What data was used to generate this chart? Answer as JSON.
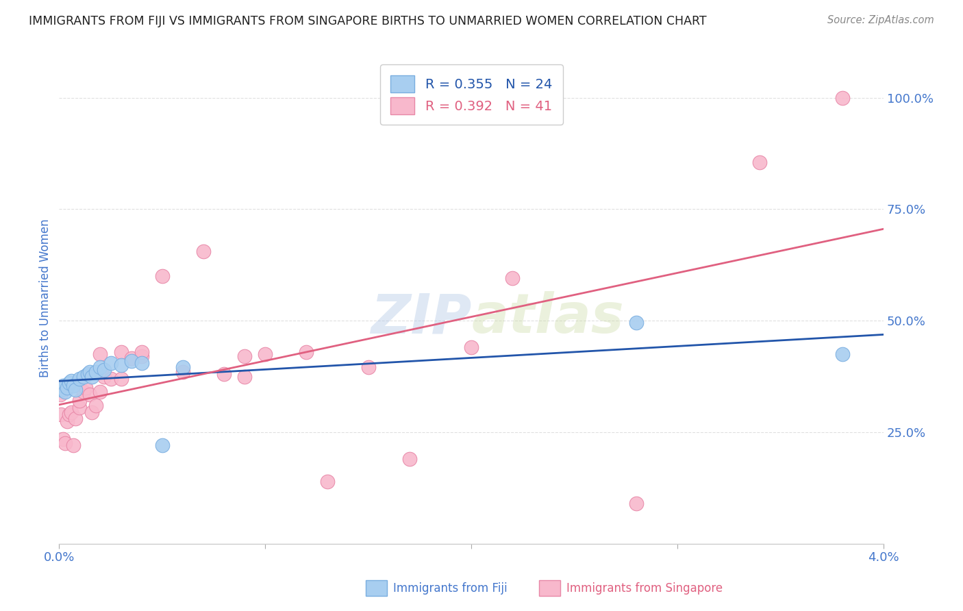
{
  "title": "IMMIGRANTS FROM FIJI VS IMMIGRANTS FROM SINGAPORE BIRTHS TO UNMARRIED WOMEN CORRELATION CHART",
  "source": "Source: ZipAtlas.com",
  "ylabel": "Births to Unmarried Women",
  "xmin": 0.0,
  "xmax": 0.04,
  "ymin": 0.0,
  "ymax": 1.1,
  "yticks": [
    0.25,
    0.5,
    0.75,
    1.0
  ],
  "ytick_labels": [
    "25.0%",
    "50.0%",
    "75.0%",
    "100.0%"
  ],
  "fiji_color": "#a8cef0",
  "fiji_edge_color": "#7aaee0",
  "singapore_color": "#f8b8cc",
  "singapore_edge_color": "#e888a8",
  "fiji_line_color": "#2255aa",
  "singapore_line_color": "#e06080",
  "legend_R_fiji": "R = 0.355",
  "legend_N_fiji": "N = 24",
  "legend_R_singapore": "R = 0.392",
  "legend_N_singapore": "N = 41",
  "watermark_zip": "ZIP",
  "watermark_atlas": "atlas",
  "fiji_scatter_x": [
    0.0001,
    0.0002,
    0.0003,
    0.0004,
    0.0005,
    0.0006,
    0.0007,
    0.0008,
    0.001,
    0.0012,
    0.0014,
    0.0015,
    0.0016,
    0.0018,
    0.002,
    0.0022,
    0.0025,
    0.003,
    0.0035,
    0.004,
    0.005,
    0.006,
    0.028,
    0.038
  ],
  "fiji_scatter_y": [
    0.345,
    0.355,
    0.34,
    0.35,
    0.36,
    0.365,
    0.355,
    0.345,
    0.37,
    0.375,
    0.38,
    0.385,
    0.375,
    0.385,
    0.395,
    0.39,
    0.405,
    0.4,
    0.41,
    0.405,
    0.22,
    0.395,
    0.495,
    0.425
  ],
  "singapore_scatter_x": [
    5e-05,
    0.0001,
    0.0002,
    0.0003,
    0.0004,
    0.0005,
    0.0006,
    0.0007,
    0.0008,
    0.001,
    0.001,
    0.0012,
    0.0013,
    0.0015,
    0.0016,
    0.0018,
    0.002,
    0.002,
    0.0022,
    0.0025,
    0.003,
    0.003,
    0.0035,
    0.004,
    0.004,
    0.005,
    0.006,
    0.007,
    0.008,
    0.009,
    0.009,
    0.01,
    0.012,
    0.013,
    0.015,
    0.017,
    0.02,
    0.022,
    0.028,
    0.034,
    0.038
  ],
  "singapore_scatter_y": [
    0.335,
    0.29,
    0.235,
    0.225,
    0.275,
    0.29,
    0.295,
    0.22,
    0.28,
    0.305,
    0.32,
    0.34,
    0.35,
    0.335,
    0.295,
    0.31,
    0.34,
    0.425,
    0.375,
    0.37,
    0.37,
    0.43,
    0.415,
    0.42,
    0.43,
    0.6,
    0.385,
    0.655,
    0.38,
    0.375,
    0.42,
    0.425,
    0.43,
    0.14,
    0.395,
    0.19,
    0.44,
    0.595,
    0.09,
    0.855,
    1.0
  ],
  "background_color": "#ffffff",
  "grid_color": "#dddddd",
  "title_color": "#222222",
  "axis_label_color": "#4477cc",
  "tick_label_color": "#4477cc",
  "source_color": "#888888",
  "legend_bg": "#ffffff",
  "legend_edge": "#cccccc"
}
